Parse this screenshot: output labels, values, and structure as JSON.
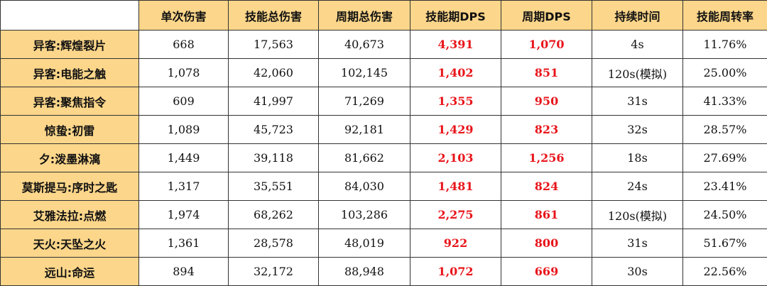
{
  "table": {
    "header": [
      "单次伤害",
      "技能总伤害",
      "周期总伤害",
      "技能期DPS",
      "周期DPS",
      "持续时间",
      "技能周转率"
    ],
    "rows": [
      {
        "label": "异客:辉煌裂片",
        "cells": [
          "668",
          "17,563",
          "40,673",
          "4,391",
          "1,070",
          "4s",
          "11.76%"
        ]
      },
      {
        "label": "异客:电能之触",
        "cells": [
          "1,078",
          "42,060",
          "102,145",
          "1,402",
          "851",
          "120s(模拟)",
          "25.00%"
        ]
      },
      {
        "label": "异客:聚焦指令",
        "cells": [
          "609",
          "41,997",
          "71,269",
          "1,355",
          "950",
          "31s",
          "41.33%"
        ]
      },
      {
        "label": "惊蛰:初雷",
        "cells": [
          "1,089",
          "45,723",
          "92,181",
          "1,429",
          "823",
          "32s",
          "28.57%"
        ]
      },
      {
        "label": "夕:泼墨淋漓",
        "cells": [
          "1,449",
          "39,118",
          "81,662",
          "2,103",
          "1,256",
          "18s",
          "27.69%"
        ]
      },
      {
        "label": "莫斯提马:序时之匙",
        "cells": [
          "1,317",
          "35,551",
          "84,030",
          "1,481",
          "824",
          "24s",
          "23.41%"
        ]
      },
      {
        "label": "艾雅法拉:点燃",
        "cells": [
          "1,974",
          "68,262",
          "103,286",
          "2,275",
          "861",
          "120s(模拟)",
          "24.50%"
        ]
      },
      {
        "label": "天火:天坠之火",
        "cells": [
          "1,361",
          "28,578",
          "48,019",
          "922",
          "800",
          "31s",
          "51.67%"
        ]
      },
      {
        "label": "远山:命运",
        "cells": [
          "894",
          "32,172",
          "88,948",
          "1,072",
          "669",
          "30s",
          "22.56%"
        ]
      }
    ]
  }
}
